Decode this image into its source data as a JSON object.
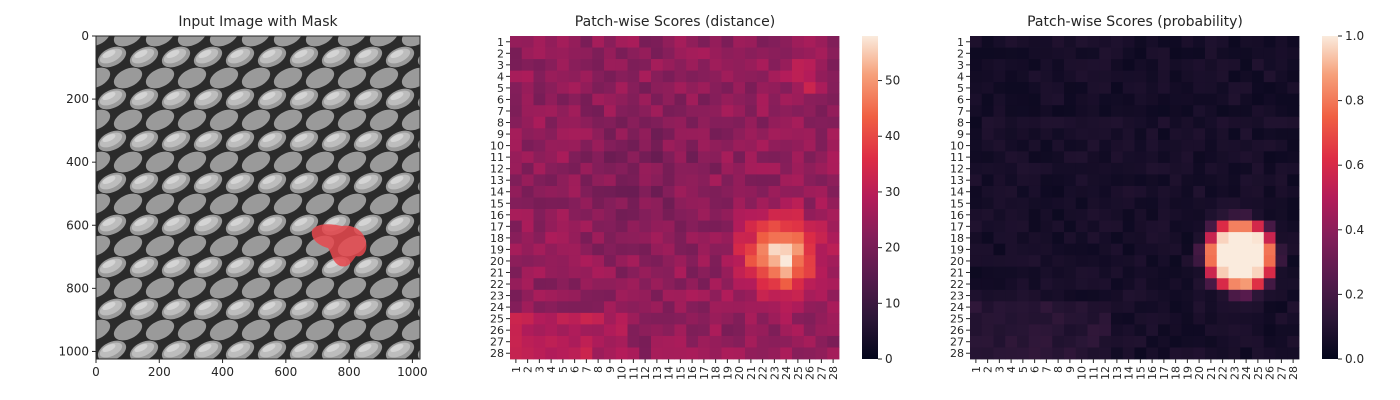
{
  "chart_data": [
    {
      "type": "image",
      "title": "Input Image with Mask",
      "xlim": [
        0,
        1024
      ],
      "ylim": [
        1024,
        0
      ],
      "x_ticks": [
        0,
        200,
        400,
        600,
        800,
        1000
      ],
      "y_ticks": [
        0,
        200,
        400,
        600,
        800,
        1000
      ],
      "mask_color": "#e8484d",
      "mask_region": {
        "center_x": 765,
        "center_y": 670,
        "approx_extent": [
          690,
          840,
          590,
          760
        ]
      }
    },
    {
      "type": "heatmap",
      "title": "Patch-wise Scores (distance)",
      "grid_size": 28,
      "x_labels": [
        "1",
        "2",
        "3",
        "4",
        "5",
        "6",
        "7",
        "8",
        "9",
        "10",
        "11",
        "12",
        "13",
        "14",
        "15",
        "16",
        "17",
        "18",
        "19",
        "20",
        "21",
        "22",
        "23",
        "24",
        "25",
        "26",
        "27",
        "28"
      ],
      "y_labels": [
        "1",
        "2",
        "3",
        "4",
        "5",
        "6",
        "7",
        "8",
        "9",
        "10",
        "11",
        "12",
        "13",
        "14",
        "15",
        "16",
        "17",
        "18",
        "19",
        "20",
        "21",
        "22",
        "23",
        "24",
        "25",
        "26",
        "27",
        "28"
      ],
      "colorbar": {
        "min": 0,
        "max": 58,
        "ticks": [
          0,
          10,
          20,
          30,
          40,
          50
        ]
      },
      "background_value": 24,
      "hotspot": {
        "row": 19.5,
        "col": 23.5,
        "peak": 58
      },
      "secondary_hotspot": {
        "row": 4,
        "col": 25.5,
        "peak": 33
      }
    },
    {
      "type": "heatmap",
      "title": "Patch-wise Scores (probability)",
      "grid_size": 28,
      "x_labels": [
        "1",
        "2",
        "3",
        "4",
        "5",
        "6",
        "7",
        "8",
        "9",
        "10",
        "11",
        "12",
        "13",
        "14",
        "15",
        "16",
        "17",
        "18",
        "19",
        "20",
        "21",
        "22",
        "23",
        "24",
        "25",
        "26",
        "27",
        "28"
      ],
      "y_labels": [
        "1",
        "2",
        "3",
        "4",
        "5",
        "6",
        "7",
        "8",
        "9",
        "10",
        "11",
        "12",
        "13",
        "14",
        "15",
        "16",
        "17",
        "18",
        "19",
        "20",
        "21",
        "22",
        "23",
        "24",
        "25",
        "26",
        "27",
        "28"
      ],
      "colorbar": {
        "min": 0.0,
        "max": 1.0,
        "ticks": [
          0.0,
          0.2,
          0.4,
          0.6,
          0.8,
          1.0
        ],
        "tick_labels": [
          "0.0",
          "0.2",
          "0.4",
          "0.6",
          "0.8",
          "1.0"
        ]
      },
      "background_value": 0.02,
      "hotspot": {
        "row": 19.5,
        "col": 23.5,
        "peak": 1.0
      }
    }
  ],
  "colors": {
    "text": "#262626",
    "spine": "#262626"
  }
}
